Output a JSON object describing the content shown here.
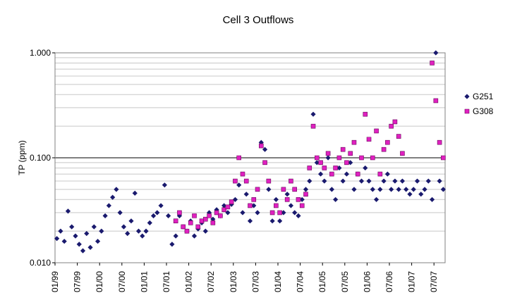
{
  "chart_data": {
    "type": "scatter",
    "title": "Cell 3 Outflows",
    "xlabel": "",
    "ylabel": "TP (ppm)",
    "y_scale": "log",
    "ylim": [
      0.01,
      1.0
    ],
    "y_ticks": [
      0.01,
      0.1,
      1.0
    ],
    "y_tick_labels": [
      "0.010",
      "0.100",
      "1.000"
    ],
    "y_minor_grid": true,
    "reference_line_y": 0.1,
    "x_range": [
      "1999-01",
      "2007-09"
    ],
    "x_ticks": [
      "1999-01",
      "1999-07",
      "2000-01",
      "2000-07",
      "2001-01",
      "2001-07",
      "2002-01",
      "2002-07",
      "2003-01",
      "2003-07",
      "2004-01",
      "2004-07",
      "2005-01",
      "2005-07",
      "2006-01",
      "2006-07",
      "2007-01",
      "2007-07"
    ],
    "x_tick_labels": [
      "01/99",
      "07/99",
      "01/00",
      "07/00",
      "01/01",
      "07/01",
      "01/02",
      "07/02",
      "01/03",
      "07/03",
      "01/04",
      "07/04",
      "01/05",
      "07/05",
      "01/06",
      "07/06",
      "01/07",
      "07/07"
    ],
    "legend_position": "right",
    "series": [
      {
        "name": "G251",
        "color": "#1a1a6e",
        "marker": "diamond",
        "points": [
          [
            "1999-01",
            0.017
          ],
          [
            "1999-02",
            0.02
          ],
          [
            "1999-03",
            0.016
          ],
          [
            "1999-04",
            0.031
          ],
          [
            "1999-05",
            0.022
          ],
          [
            "1999-06",
            0.018
          ],
          [
            "1999-07",
            0.015
          ],
          [
            "1999-08",
            0.013
          ],
          [
            "1999-09",
            0.019
          ],
          [
            "1999-10",
            0.014
          ],
          [
            "1999-11",
            0.022
          ],
          [
            "1999-12",
            0.016
          ],
          [
            "2000-01",
            0.02
          ],
          [
            "2000-02",
            0.028
          ],
          [
            "2000-03",
            0.035
          ],
          [
            "2000-04",
            0.042
          ],
          [
            "2000-05",
            0.05
          ],
          [
            "2000-06",
            0.03
          ],
          [
            "2000-07",
            0.022
          ],
          [
            "2000-08",
            0.019
          ],
          [
            "2000-09",
            0.025
          ],
          [
            "2000-10",
            0.046
          ],
          [
            "2000-11",
            0.02
          ],
          [
            "2000-12",
            0.018
          ],
          [
            "2001-01",
            0.02
          ],
          [
            "2001-02",
            0.024
          ],
          [
            "2001-03",
            0.028
          ],
          [
            "2001-04",
            0.03
          ],
          [
            "2001-05",
            0.035
          ],
          [
            "2001-06",
            0.055
          ],
          [
            "2001-07",
            0.028
          ],
          [
            "2001-08",
            0.015
          ],
          [
            "2001-09",
            0.018
          ],
          [
            "2001-10",
            0.028
          ],
          [
            "2001-11",
            0.022
          ],
          [
            "2001-12",
            0.02
          ],
          [
            "2002-01",
            0.025
          ],
          [
            "2002-02",
            0.018
          ],
          [
            "2002-03",
            0.021
          ],
          [
            "2002-04",
            0.024
          ],
          [
            "2002-05",
            0.02
          ],
          [
            "2002-06",
            0.03
          ],
          [
            "2002-07",
            0.026
          ],
          [
            "2002-08",
            0.032
          ],
          [
            "2002-09",
            0.028
          ],
          [
            "2002-10",
            0.035
          ],
          [
            "2002-11",
            0.03
          ],
          [
            "2002-12",
            0.036
          ],
          [
            "2003-01",
            0.04
          ],
          [
            "2003-02",
            0.055
          ],
          [
            "2003-03",
            0.03
          ],
          [
            "2003-04",
            0.045
          ],
          [
            "2003-05",
            0.025
          ],
          [
            "2003-06",
            0.035
          ],
          [
            "2003-07",
            0.03
          ],
          [
            "2003-08",
            0.14
          ],
          [
            "2003-09",
            0.12
          ],
          [
            "2003-10",
            0.05
          ],
          [
            "2003-11",
            0.025
          ],
          [
            "2003-12",
            0.04
          ],
          [
            "2004-01",
            0.025
          ],
          [
            "2004-02",
            0.03
          ],
          [
            "2004-03",
            0.045
          ],
          [
            "2004-04",
            0.035
          ],
          [
            "2004-05",
            0.03
          ],
          [
            "2004-06",
            0.028
          ],
          [
            "2004-07",
            0.04
          ],
          [
            "2004-08",
            0.05
          ],
          [
            "2004-09",
            0.06
          ],
          [
            "2004-10",
            0.26
          ],
          [
            "2004-11",
            0.09
          ],
          [
            "2004-12",
            0.07
          ],
          [
            "2005-01",
            0.06
          ],
          [
            "2005-02",
            0.1
          ],
          [
            "2005-03",
            0.05
          ],
          [
            "2005-04",
            0.04
          ],
          [
            "2005-05",
            0.08
          ],
          [
            "2005-06",
            0.06
          ],
          [
            "2005-07",
            0.07
          ],
          [
            "2005-08",
            0.09
          ],
          [
            "2005-09",
            0.05
          ],
          [
            "2005-10",
            0.07
          ],
          [
            "2005-11",
            0.06
          ],
          [
            "2005-12",
            0.08
          ],
          [
            "2006-01",
            0.06
          ],
          [
            "2006-02",
            0.05
          ],
          [
            "2006-03",
            0.04
          ],
          [
            "2006-04",
            0.05
          ],
          [
            "2006-05",
            0.06
          ],
          [
            "2006-06",
            0.07
          ],
          [
            "2006-07",
            0.05
          ],
          [
            "2006-08",
            0.06
          ],
          [
            "2006-09",
            0.05
          ],
          [
            "2006-10",
            0.06
          ],
          [
            "2006-11",
            0.05
          ],
          [
            "2006-12",
            0.045
          ],
          [
            "2007-01",
            0.05
          ],
          [
            "2007-02",
            0.06
          ],
          [
            "2007-03",
            0.045
          ],
          [
            "2007-04",
            0.05
          ],
          [
            "2007-05",
            0.06
          ],
          [
            "2007-06",
            0.04
          ],
          [
            "2007-07",
            1.0
          ],
          [
            "2007-08",
            0.06
          ],
          [
            "2007-09",
            0.05
          ]
        ]
      },
      {
        "name": "G308",
        "color": "#e020c0",
        "marker": "square",
        "points": [
          [
            "2001-09",
            0.025
          ],
          [
            "2001-10",
            0.03
          ],
          [
            "2001-11",
            0.022
          ],
          [
            "2001-12",
            0.02
          ],
          [
            "2002-01",
            0.024
          ],
          [
            "2002-02",
            0.028
          ],
          [
            "2002-03",
            0.022
          ],
          [
            "2002-04",
            0.025
          ],
          [
            "2002-05",
            0.026
          ],
          [
            "2002-06",
            0.028
          ],
          [
            "2002-07",
            0.024
          ],
          [
            "2002-08",
            0.03
          ],
          [
            "2002-09",
            0.028
          ],
          [
            "2002-10",
            0.032
          ],
          [
            "2002-11",
            0.034
          ],
          [
            "2002-12",
            0.038
          ],
          [
            "2003-01",
            0.06
          ],
          [
            "2003-02",
            0.1
          ],
          [
            "2003-03",
            0.07
          ],
          [
            "2003-04",
            0.06
          ],
          [
            "2003-05",
            0.035
          ],
          [
            "2003-06",
            0.04
          ],
          [
            "2003-07",
            0.05
          ],
          [
            "2003-08",
            0.13
          ],
          [
            "2003-09",
            0.09
          ],
          [
            "2003-10",
            0.06
          ],
          [
            "2003-11",
            0.03
          ],
          [
            "2003-12",
            0.035
          ],
          [
            "2004-01",
            0.03
          ],
          [
            "2004-02",
            0.05
          ],
          [
            "2004-03",
            0.04
          ],
          [
            "2004-04",
            0.06
          ],
          [
            "2004-05",
            0.05
          ],
          [
            "2004-06",
            0.04
          ],
          [
            "2004-07",
            0.035
          ],
          [
            "2004-08",
            0.045
          ],
          [
            "2004-09",
            0.08
          ],
          [
            "2004-10",
            0.2
          ],
          [
            "2004-11",
            0.1
          ],
          [
            "2004-12",
            0.09
          ],
          [
            "2005-01",
            0.08
          ],
          [
            "2005-02",
            0.11
          ],
          [
            "2005-03",
            0.07
          ],
          [
            "2005-04",
            0.08
          ],
          [
            "2005-05",
            0.1
          ],
          [
            "2005-06",
            0.12
          ],
          [
            "2005-07",
            0.09
          ],
          [
            "2005-08",
            0.11
          ],
          [
            "2005-09",
            0.14
          ],
          [
            "2005-10",
            0.07
          ],
          [
            "2005-11",
            0.1
          ],
          [
            "2005-12",
            0.26
          ],
          [
            "2006-01",
            0.15
          ],
          [
            "2006-02",
            0.1
          ],
          [
            "2006-03",
            0.18
          ],
          [
            "2006-04",
            0.07
          ],
          [
            "2006-05",
            0.12
          ],
          [
            "2006-06",
            0.14
          ],
          [
            "2006-07",
            0.2
          ],
          [
            "2006-08",
            0.22
          ],
          [
            "2006-09",
            0.16
          ],
          [
            "2006-10",
            0.11
          ],
          [
            "2007-06",
            0.8
          ],
          [
            "2007-07",
            0.35
          ],
          [
            "2007-08",
            0.14
          ],
          [
            "2007-09",
            0.1
          ]
        ]
      }
    ]
  }
}
